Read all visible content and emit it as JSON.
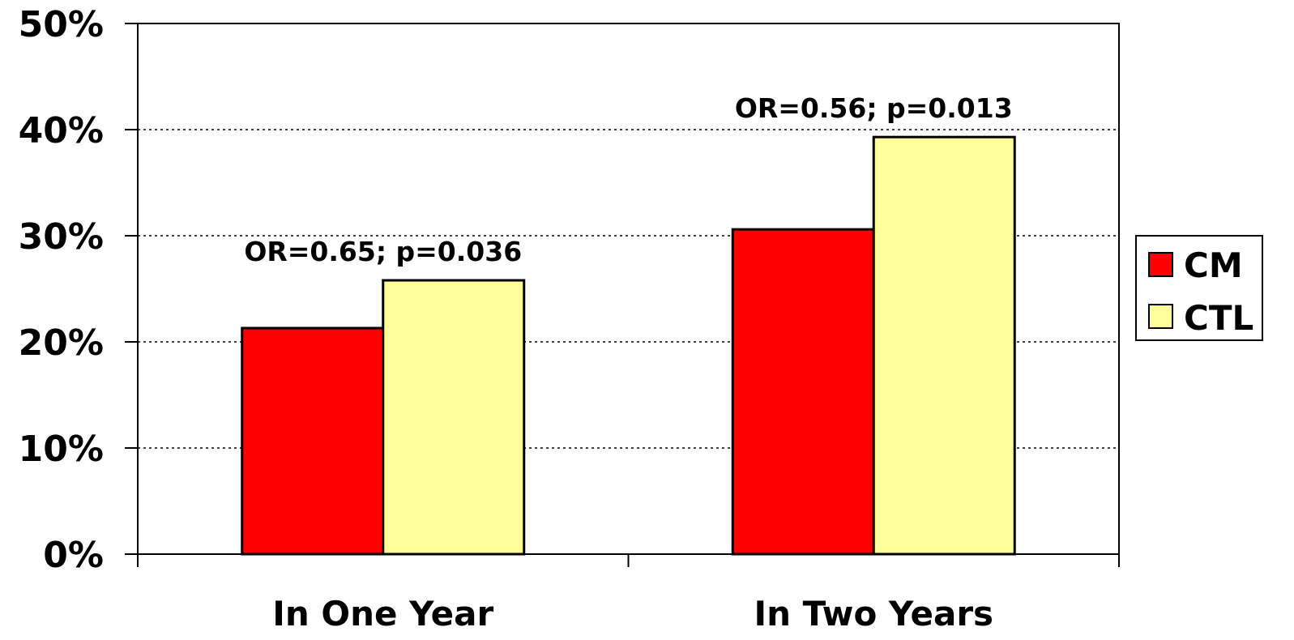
{
  "chart_data": {
    "type": "bar",
    "categories": [
      "In One Year",
      "In Two Years"
    ],
    "series": [
      {
        "name": "CM",
        "values": [
          21.3,
          30.6
        ],
        "color": "#ff0000"
      },
      {
        "name": "CTL",
        "values": [
          25.8,
          39.3
        ],
        "color": "#ffff99"
      }
    ],
    "ylim": [
      0,
      50
    ],
    "yticks": [
      0,
      10,
      20,
      30,
      40,
      50
    ],
    "ytick_labels": [
      "0%",
      "10%",
      "20%",
      "30%",
      "40%",
      "50%"
    ],
    "annotations": [
      "OR=0.65; p=0.036",
      "OR=0.56; p=0.013"
    ],
    "title": "",
    "xlabel": "",
    "ylabel": "",
    "grid": "horizontal dotted",
    "legend_position": "right"
  }
}
